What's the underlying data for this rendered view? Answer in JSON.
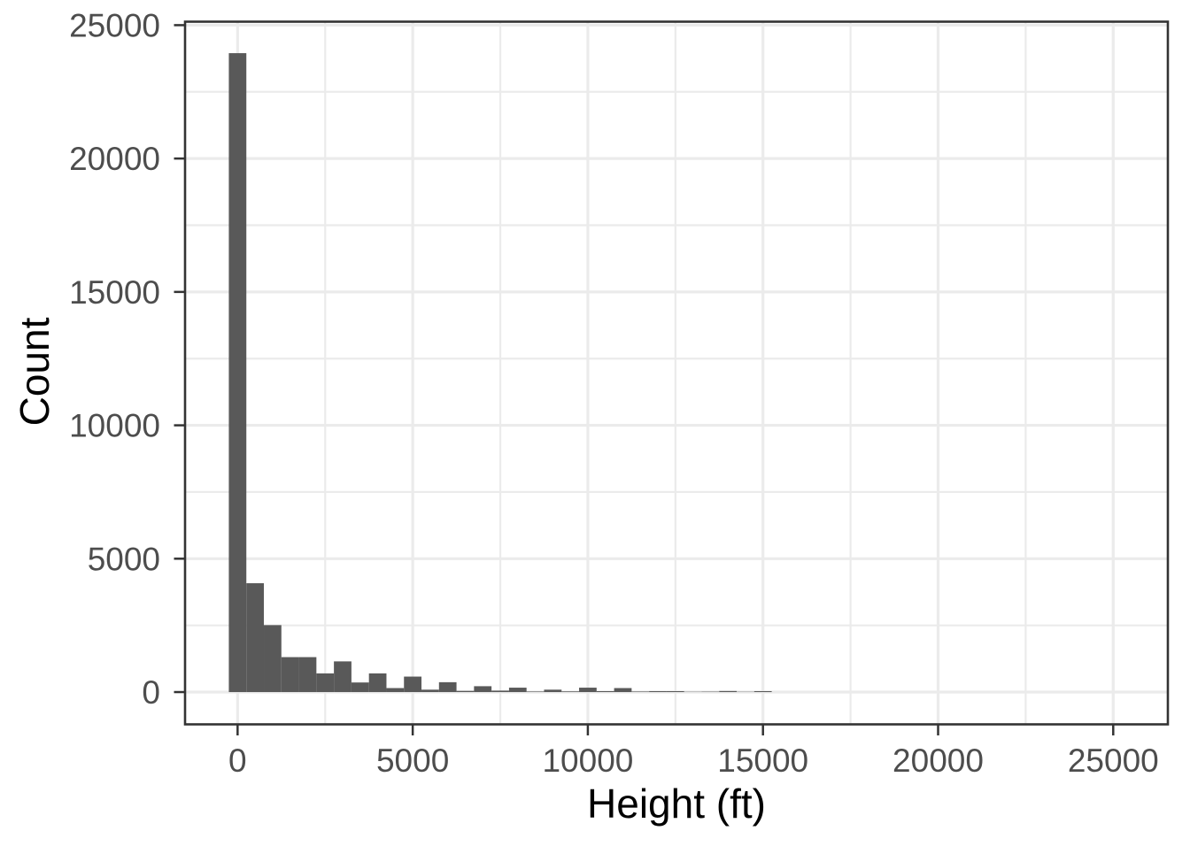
{
  "chart_data": {
    "type": "bar",
    "subtype": "histogram",
    "title": "",
    "xlabel": "Height (ft)",
    "ylabel": "Count",
    "xlim": [
      -1500,
      26560
    ],
    "ylim": [
      -1210,
      25130
    ],
    "binwidth": 500,
    "bins": [
      {
        "center": 0,
        "count": 23950
      },
      {
        "center": 500,
        "count": 4080
      },
      {
        "center": 1000,
        "count": 2510
      },
      {
        "center": 1500,
        "count": 1310
      },
      {
        "center": 2000,
        "count": 1310
      },
      {
        "center": 2500,
        "count": 700
      },
      {
        "center": 3000,
        "count": 1150
      },
      {
        "center": 3500,
        "count": 360
      },
      {
        "center": 4000,
        "count": 700
      },
      {
        "center": 4500,
        "count": 150
      },
      {
        "center": 5000,
        "count": 580
      },
      {
        "center": 5500,
        "count": 90
      },
      {
        "center": 6000,
        "count": 370
      },
      {
        "center": 6500,
        "count": 45
      },
      {
        "center": 7000,
        "count": 220
      },
      {
        "center": 7500,
        "count": 55
      },
      {
        "center": 8000,
        "count": 165
      },
      {
        "center": 8500,
        "count": 20
      },
      {
        "center": 9000,
        "count": 90
      },
      {
        "center": 9500,
        "count": 25
      },
      {
        "center": 10000,
        "count": 165
      },
      {
        "center": 10500,
        "count": 35
      },
      {
        "center": 11000,
        "count": 150
      },
      {
        "center": 11500,
        "count": 20
      },
      {
        "center": 12000,
        "count": 35
      },
      {
        "center": 12500,
        "count": 35
      },
      {
        "center": 13000,
        "count": 10
      },
      {
        "center": 13500,
        "count": 15
      },
      {
        "center": 14000,
        "count": 40
      },
      {
        "center": 14500,
        "count": 10
      },
      {
        "center": 15000,
        "count": 35
      }
    ],
    "x_ticks": [
      0,
      5000,
      10000,
      15000,
      20000,
      25000
    ],
    "x_tick_labels": [
      "0",
      "5000",
      "10000",
      "15000",
      "20000",
      "25000"
    ],
    "x_minor_ticks": [
      2500,
      7500,
      12500,
      17500,
      22500
    ],
    "y_ticks": [
      0,
      5000,
      10000,
      15000,
      20000,
      25000
    ],
    "y_tick_labels": [
      "0",
      "5000",
      "10000",
      "15000",
      "20000",
      "25000"
    ],
    "y_minor_ticks": [
      2500,
      7500,
      12500,
      17500,
      22500
    ],
    "grid": true,
    "legend_position": "none",
    "colors": {
      "bar_fill": "#595959",
      "panel_border": "#333333",
      "grid": "#EBEBEB",
      "tick_mark": "#333333",
      "tick_label": "#4D4D4D",
      "axis_title": "#000000",
      "background": "#FFFFFF"
    }
  }
}
